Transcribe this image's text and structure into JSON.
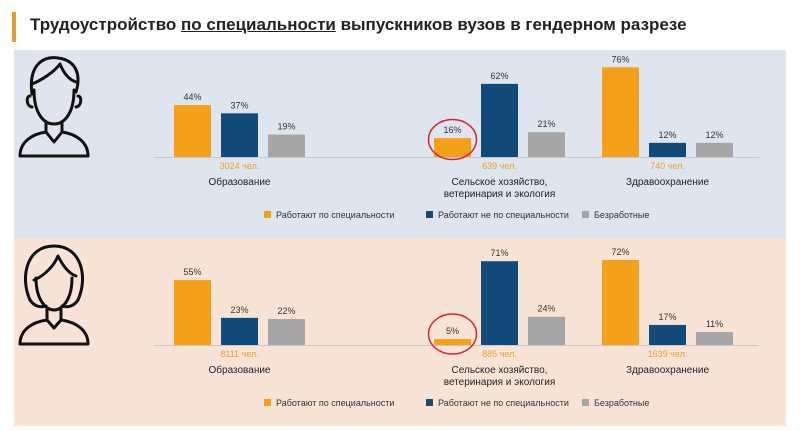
{
  "title": {
    "part1": "Трудоустройство ",
    "part2": "по специальности",
    "part3": " выпускников вузов в гендерном разрезе"
  },
  "colors": {
    "on_specialty": "#f5a01a",
    "off_specialty": "#124a7a",
    "unemployed": "#a6a6a6",
    "total_label": "#e8a030",
    "highlight_circle": "#d9242a"
  },
  "legend": [
    "Работают по специальности",
    "Работают не по специальности",
    "Безработные"
  ],
  "chart_data": [
    {
      "type": "bar",
      "panel": "male",
      "avatar_icon": "male-person-icon",
      "series_names": [
        "Работают по специальности",
        "Работают не по специальности",
        "Безработные"
      ],
      "groups": [
        {
          "category": "Образование",
          "values": [
            44,
            37,
            19
          ],
          "total": "3024 чел."
        },
        {
          "category_line1": "Сельское хозяйство,",
          "category_line2": "ветеринария и экология",
          "values": [
            16,
            62,
            21
          ],
          "total": "639 чел.",
          "highlight": true
        },
        {
          "category": "Здравоохранение",
          "values": [
            76,
            12,
            12
          ],
          "total": "740 чел."
        }
      ],
      "value_labels": [
        [
          "44%",
          "37%",
          "19%"
        ],
        [
          "16%",
          "62%",
          "21%"
        ],
        [
          "76%",
          "12%",
          "12%"
        ]
      ]
    },
    {
      "type": "bar",
      "panel": "female",
      "avatar_icon": "female-person-icon",
      "series_names": [
        "Работают по специальности",
        "Работают не по специальности",
        "Безработные"
      ],
      "groups": [
        {
          "category": "Образование",
          "values": [
            55,
            23,
            22
          ],
          "total": "8111 чел."
        },
        {
          "category_line1": "Сельское хозяйство,",
          "category_line2": "ветеринария и экология",
          "values": [
            5,
            71,
            24
          ],
          "total": "885 чел.",
          "highlight": true
        },
        {
          "category": "Здравоохранение",
          "values": [
            72,
            17,
            11
          ],
          "total": "1639 чел."
        }
      ],
      "value_labels": [
        [
          "55%",
          "23%",
          "22%"
        ],
        [
          "5%",
          "71%",
          "24%"
        ],
        [
          "72%",
          "17%",
          "11%"
        ]
      ]
    }
  ]
}
